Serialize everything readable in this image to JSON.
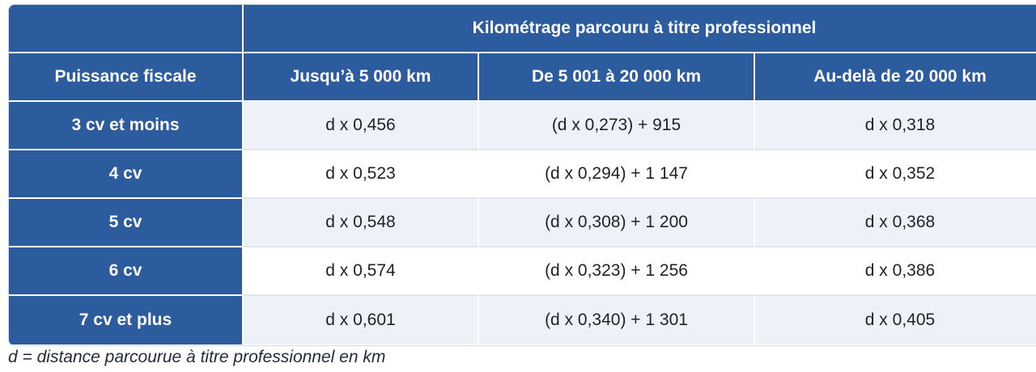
{
  "table": {
    "group_header": "Kilométrage parcouru à titre professionnel",
    "columns": [
      "Puissance fiscale",
      "Jusqu’à 5 000 km",
      "De 5 001 à 20 000 km",
      "Au-delà de 20 000 km"
    ],
    "rows": [
      {
        "power": "3 cv et moins",
        "up_to_5000": "d x 0,456",
        "from_5001_to_20000": "(d x 0,273) + 915",
        "over_20000": "d x 0,318"
      },
      {
        "power": "4 cv",
        "up_to_5000": "d x 0,523",
        "from_5001_to_20000": "(d x 0,294) + 1 147",
        "over_20000": "d x 0,352"
      },
      {
        "power": "5 cv",
        "up_to_5000": "d x 0,548",
        "from_5001_to_20000": "(d x 0,308) + 1 200",
        "over_20000": "d x 0,368"
      },
      {
        "power": "6 cv",
        "up_to_5000": "d x 0,574",
        "from_5001_to_20000": "(d x 0,323) + 1 256",
        "over_20000": "d x 0,386"
      },
      {
        "power": "7 cv et plus",
        "up_to_5000": "d x 0,601",
        "from_5001_to_20000": "(d x 0,340) + 1 301",
        "over_20000": "d x 0,405"
      }
    ]
  },
  "footnote": "d = distance parcourue à titre professionnel en km",
  "colors": {
    "header_blue": "#2c5c9e",
    "shaded_row": "#eef2f8",
    "text": "#222222"
  }
}
